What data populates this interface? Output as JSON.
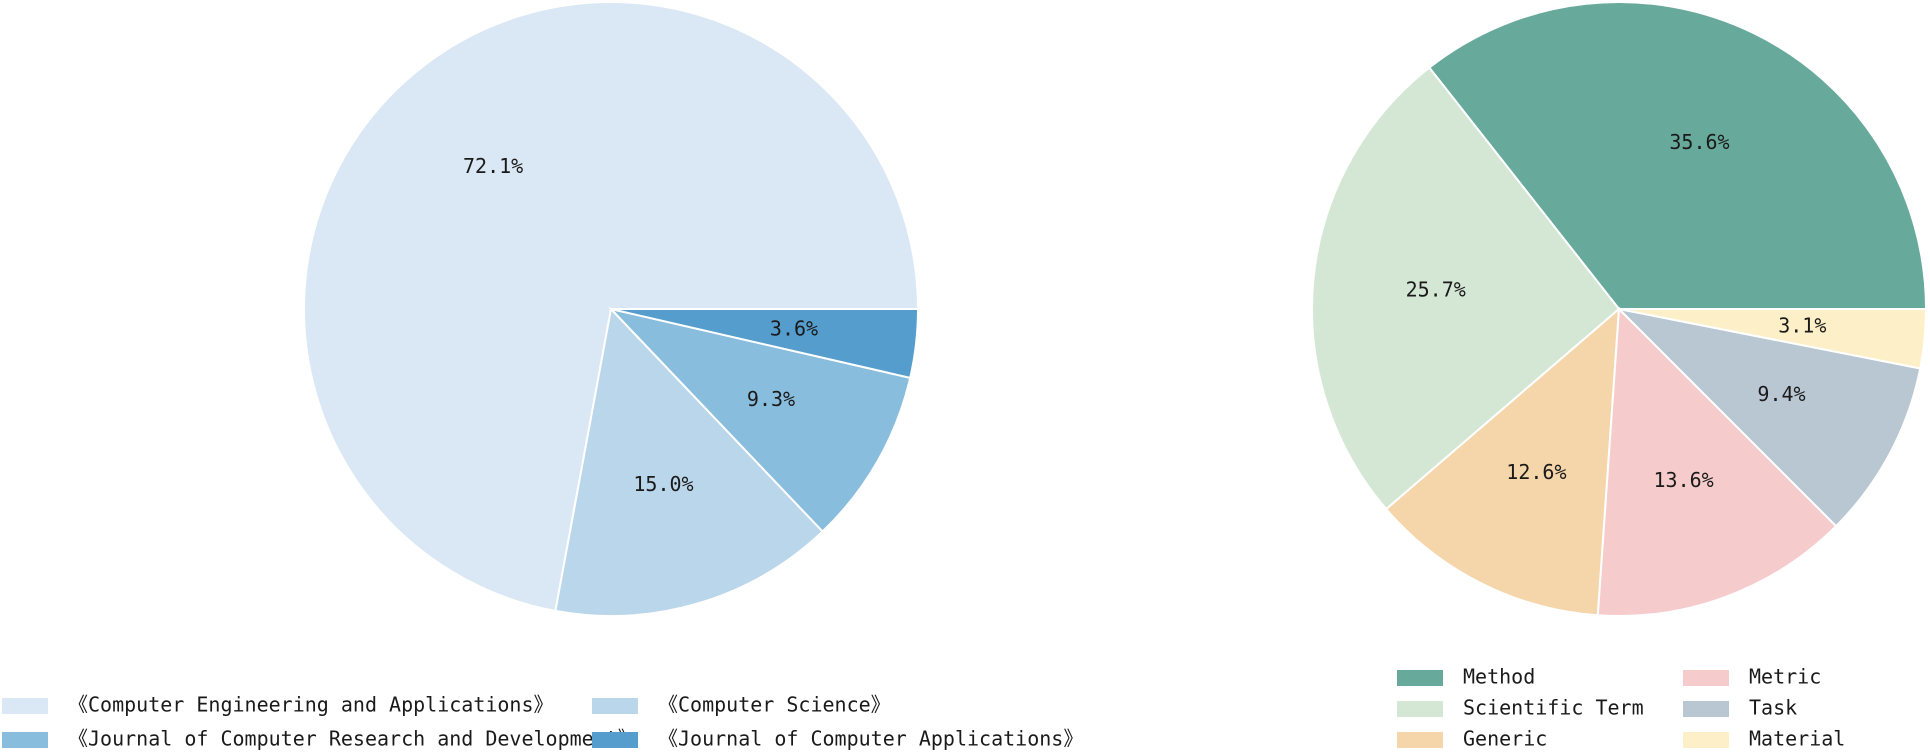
{
  "chart_data": [
    {
      "type": "pie",
      "title": "",
      "slices": [
        {
          "label": "《Computer Engineering and Applications》",
          "value": 72.1,
          "display": "72.1%",
          "color": "#dae7f4"
        },
        {
          "label": "《Computer Science》",
          "value": 15.0,
          "display": "15.0%",
          "color": "#bad6eb"
        },
        {
          "label": "《Journal of Computer Research and Development》",
          "value": 9.3,
          "display": "9.3%",
          "color": "#89bddd"
        },
        {
          "label": "《Journal of Computer Applications》",
          "value": 3.6,
          "display": "3.6%",
          "color": "#559dcd"
        }
      ],
      "legend_position": "bottom"
    },
    {
      "type": "pie",
      "title": "",
      "slices": [
        {
          "label": "Method",
          "value": 35.6,
          "display": "35.6%",
          "color": "#67aa9c"
        },
        {
          "label": "Scientific Term",
          "value": 25.7,
          "display": "25.7%",
          "color": "#d4e7d5"
        },
        {
          "label": "Generic",
          "value": 12.6,
          "display": "12.6%",
          "color": "#f5d5aa"
        },
        {
          "label": "Metric",
          "value": 13.6,
          "display": "13.6%",
          "color": "#f5cccb"
        },
        {
          "label": "Task",
          "value": 9.4,
          "display": "9.4%",
          "color": "#b9c7d3"
        },
        {
          "label": "Material",
          "value": 3.1,
          "display": "3.1%",
          "color": "#fdf0c8"
        }
      ],
      "legend_position": "bottom"
    }
  ]
}
